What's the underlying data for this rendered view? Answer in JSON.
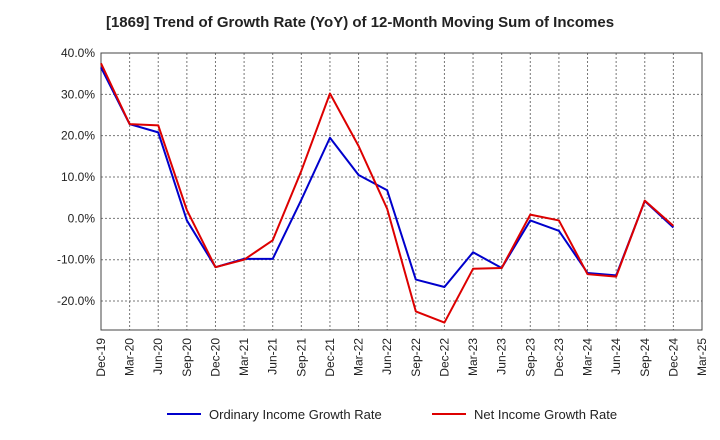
{
  "chart_data": {
    "type": "line",
    "title": "[1869]  Trend of Growth Rate (YoY) of 12-Month Moving Sum of Incomes",
    "x": [
      "Dec-19",
      "Mar-20",
      "Jun-20",
      "Sep-20",
      "Dec-20",
      "Mar-21",
      "Jun-21",
      "Sep-21",
      "Dec-21",
      "Mar-22",
      "Jun-22",
      "Sep-22",
      "Dec-22",
      "Mar-23",
      "Jun-23",
      "Sep-23",
      "Dec-23",
      "Mar-24",
      "Jun-24",
      "Sep-24",
      "Dec-24",
      "Mar-25"
    ],
    "x_tick_labels": [
      "Dec-19",
      "Mar-20",
      "Jun-20",
      "Sep-20",
      "Dec-20",
      "Mar-21",
      "Jun-21",
      "Sep-21",
      "Dec-21",
      "Mar-22",
      "Jun-22",
      "Sep-22",
      "Dec-22",
      "Mar-23",
      "Jun-23",
      "Sep-23",
      "Dec-23",
      "Mar-24",
      "Jun-24",
      "Sep-24",
      "Dec-24",
      "Mar-25"
    ],
    "y_ticks": [
      -20,
      -10,
      0,
      10,
      20,
      30,
      40
    ],
    "y_tick_labels": [
      "-20.0%",
      "-10.0%",
      "0.0%",
      "10.0%",
      "20.0%",
      "30.0%",
      "40.0%"
    ],
    "ylim": [
      -27,
      40
    ],
    "grid": true,
    "legend_position": "bottom",
    "series": [
      {
        "name": "Ordinary Income Growth Rate",
        "color": "#0000cc",
        "values": [
          36.5,
          22.8,
          20.8,
          -0.5,
          -11.8,
          -9.8,
          -9.8,
          4.5,
          19.5,
          10.5,
          6.8,
          -14.8,
          -16.6,
          -8.2,
          -12.0,
          -0.5,
          -3.0,
          -13.2,
          -13.8,
          4.2,
          -2.2,
          null
        ]
      },
      {
        "name": "Net Income Growth Rate",
        "color": "#dd0000",
        "values": [
          37.5,
          22.8,
          22.5,
          2.0,
          -11.8,
          -10.0,
          -5.3,
          11.5,
          30.2,
          17.5,
          2.3,
          -22.5,
          -25.2,
          -12.2,
          -12.0,
          0.9,
          -0.5,
          -13.5,
          -14.1,
          4.3,
          -1.8,
          null
        ]
      }
    ]
  }
}
